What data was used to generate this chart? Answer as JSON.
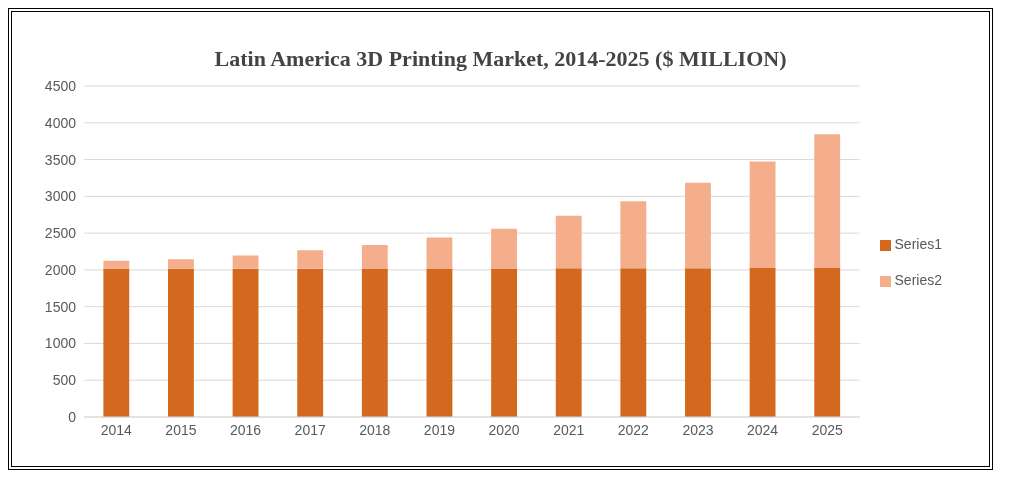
{
  "chart_data": {
    "type": "bar",
    "title": "Latin America 3D Printing Market, 2014-2025 ($ MILLION)",
    "categories": [
      "2014",
      "2015",
      "2016",
      "2017",
      "2018",
      "2019",
      "2020",
      "2021",
      "2022",
      "2023",
      "2024",
      "2025"
    ],
    "series": [
      {
        "name": "Series1",
        "color": "#d2691e",
        "values": [
          2014,
          2015,
          2016,
          2017,
          2018,
          2019,
          2020,
          2021,
          2022,
          2023,
          2024,
          2025
        ]
      },
      {
        "name": "Series2",
        "color": "#f4ae8c",
        "values": [
          110,
          130,
          180,
          250,
          320,
          420,
          540,
          715,
          910,
          1160,
          1450,
          1820
        ]
      }
    ],
    "stacked": true,
    "ylim": [
      0,
      4500
    ],
    "yticks": [
      0,
      500,
      1000,
      1500,
      2000,
      2500,
      3000,
      3500,
      4000,
      4500
    ],
    "grid": "y",
    "legend": "right"
  }
}
